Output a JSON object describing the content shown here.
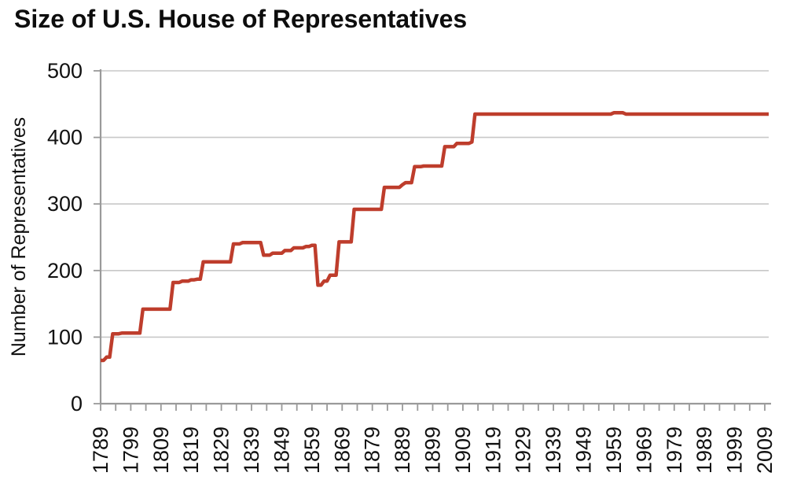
{
  "chart_data": {
    "type": "line",
    "subtype": "step",
    "title": "Size of U.S. House of Representatives",
    "ylabel": "Number of Representatives",
    "xlabel": "",
    "x_range": [
      1789,
      2009
    ],
    "ylim": [
      0,
      500
    ],
    "y_ticks": [
      0,
      100,
      200,
      300,
      400,
      500
    ],
    "x_tick_labels": [
      "1789",
      "1799",
      "1809",
      "1819",
      "1829",
      "1839",
      "1849",
      "1859",
      "1869",
      "1879",
      "1889",
      "1899",
      "1909",
      "1919",
      "1929",
      "1939",
      "1949",
      "1959",
      "1969",
      "1979",
      "1989",
      "1999",
      "2009"
    ],
    "x_label_step_years": 10,
    "x_minor_tick_step_years": 5,
    "grid": "horizontal",
    "legend": "none",
    "colors": {
      "line": "#BE3D2C",
      "axis": "#9A9A9A",
      "grid": "#C8C8C8",
      "text": "#111111",
      "background": "#FFFFFF"
    },
    "series": [
      {
        "name": "Number of Representatives",
        "points": [
          [
            1789,
            65
          ],
          [
            1791,
            70
          ],
          [
            1793,
            105
          ],
          [
            1796,
            106
          ],
          [
            1803,
            142
          ],
          [
            1813,
            182
          ],
          [
            1816,
            184
          ],
          [
            1819,
            186
          ],
          [
            1821,
            187
          ],
          [
            1823,
            213
          ],
          [
            1833,
            240
          ],
          [
            1836,
            242
          ],
          [
            1843,
            223
          ],
          [
            1846,
            226
          ],
          [
            1850,
            230
          ],
          [
            1853,
            234
          ],
          [
            1857,
            236
          ],
          [
            1859,
            238
          ],
          [
            1861,
            178
          ],
          [
            1863,
            184
          ],
          [
            1865,
            193
          ],
          [
            1868,
            243
          ],
          [
            1873,
            292
          ],
          [
            1883,
            325
          ],
          [
            1889,
            329
          ],
          [
            1890,
            332
          ],
          [
            1893,
            356
          ],
          [
            1896,
            357
          ],
          [
            1903,
            386
          ],
          [
            1907,
            391
          ],
          [
            1912,
            393
          ],
          [
            1913,
            435
          ],
          [
            1959,
            437
          ],
          [
            1963,
            435
          ],
          [
            2009,
            435
          ]
        ]
      }
    ]
  }
}
